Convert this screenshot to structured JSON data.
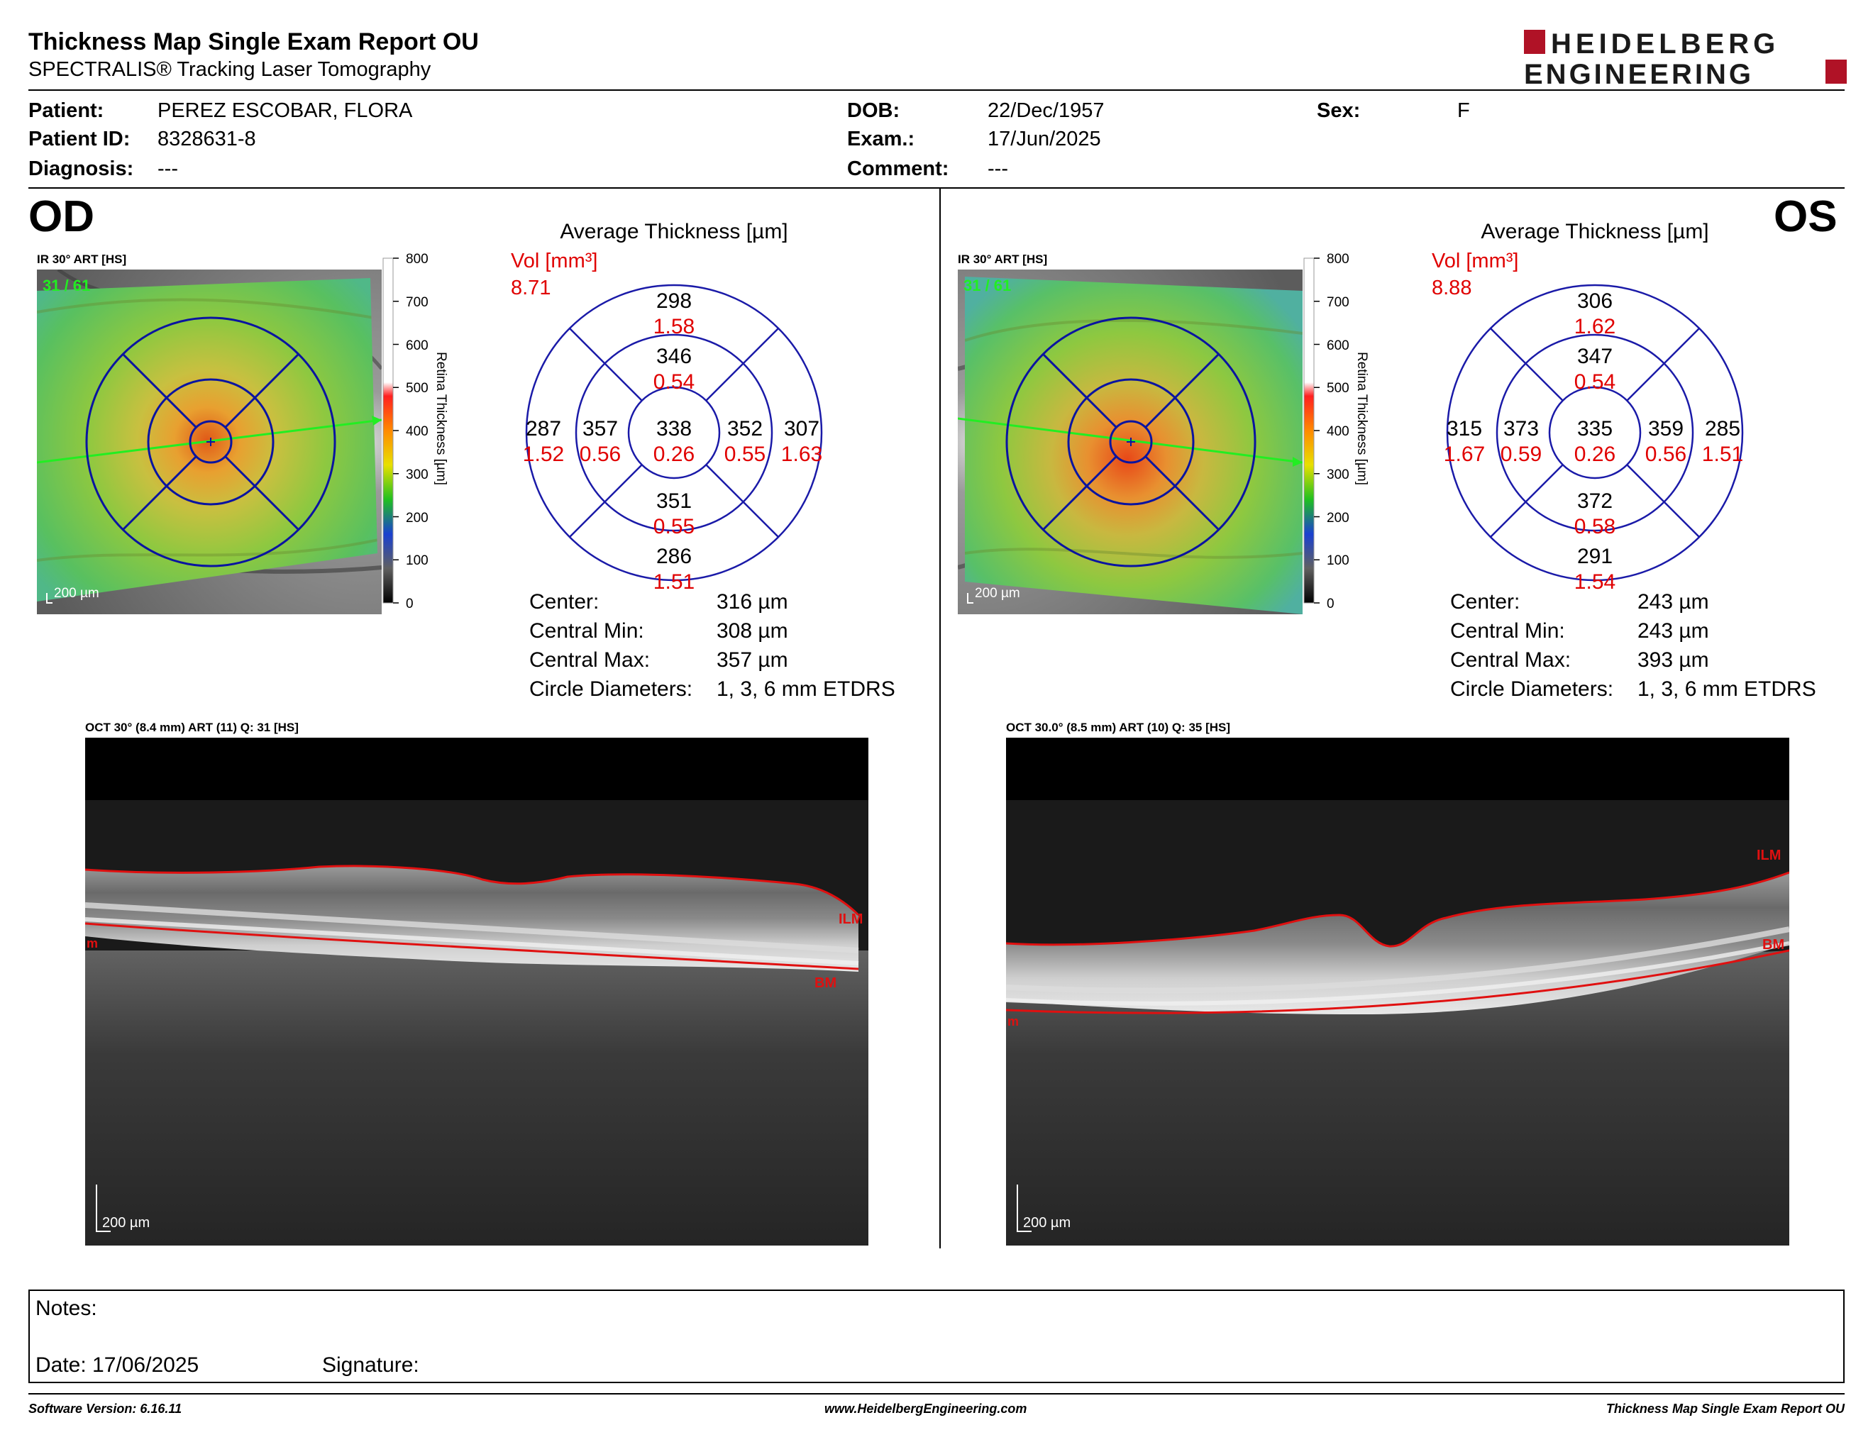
{
  "report": {
    "title": "Thickness Map Single Exam Report OU",
    "subtitle": "SPECTRALIS® Tracking Laser Tomography",
    "logo_line1": "HEIDELBERG",
    "logo_line2": "ENGINEERING",
    "brand_color": "#b01226"
  },
  "patient": {
    "patient_label": "Patient:",
    "patient_value": "PEREZ ESCOBAR, FLORA",
    "id_label": "Patient ID:",
    "id_value": "8328631-8",
    "diagnosis_label": "Diagnosis:",
    "diagnosis_value": "---",
    "dob_label": "DOB:",
    "dob_value": "22/Dec/1957",
    "exam_label": "Exam.:",
    "exam_value": "17/Jun/2025",
    "comment_label": "Comment:",
    "comment_value": "---",
    "sex_label": "Sex:",
    "sex_value": "F"
  },
  "scale": {
    "ticks": [
      "800",
      "700",
      "600",
      "500",
      "400",
      "300",
      "200",
      "100",
      "0"
    ],
    "title": "Retina  Thickness [µm]"
  },
  "od": {
    "eye_label": "OD",
    "ir_label": "IR 30° ART [HS]",
    "ir_counter": "31 / 61",
    "ir_scale": "200 µm",
    "avg_title": "Average Thickness [µm]",
    "vol_label": "Vol [mm³]",
    "vol_value": "8.71",
    "sectors": {
      "outer_sup": {
        "t": "298",
        "v": "1.58"
      },
      "inner_sup": {
        "t": "346",
        "v": "0.54"
      },
      "outer_left": {
        "t": "287",
        "v": "1.52"
      },
      "inner_left": {
        "t": "357",
        "v": "0.56"
      },
      "center": {
        "t": "338",
        "v": "0.26"
      },
      "inner_right": {
        "t": "352",
        "v": "0.55"
      },
      "outer_right": {
        "t": "307",
        "v": "1.63"
      },
      "inner_inf": {
        "t": "351",
        "v": "0.55"
      },
      "outer_inf": {
        "t": "286",
        "v": "1.51"
      }
    },
    "stats": {
      "center_label": "Center:",
      "center_value": "316 µm",
      "min_label": "Central Min:",
      "min_value": "308 µm",
      "max_label": "Central Max:",
      "max_value": "357 µm",
      "diam_label": "Circle Diameters:",
      "diam_value": "1, 3, 6 mm ETDRS"
    },
    "oct_label": "OCT 30° (8.4 mm) ART (11) Q: 31 [HS]",
    "oct_scale": "200 µm",
    "ilm": "ILM",
    "bm": "BM",
    "m": "m"
  },
  "os": {
    "eye_label": "OS",
    "ir_label": "IR 30° ART [HS]",
    "ir_counter": "31 / 61",
    "ir_scale": "200 µm",
    "avg_title": "Average Thickness [µm]",
    "vol_label": "Vol [mm³]",
    "vol_value": "8.88",
    "sectors": {
      "outer_sup": {
        "t": "306",
        "v": "1.62"
      },
      "inner_sup": {
        "t": "347",
        "v": "0.54"
      },
      "outer_left": {
        "t": "315",
        "v": "1.67"
      },
      "inner_left": {
        "t": "373",
        "v": "0.59"
      },
      "center": {
        "t": "335",
        "v": "0.26"
      },
      "inner_right": {
        "t": "359",
        "v": "0.56"
      },
      "outer_right": {
        "t": "285",
        "v": "1.51"
      },
      "inner_inf": {
        "t": "372",
        "v": "0.58"
      },
      "outer_inf": {
        "t": "291",
        "v": "1.54"
      }
    },
    "stats": {
      "center_label": "Center:",
      "center_value": "243 µm",
      "min_label": "Central Min:",
      "min_value": "243 µm",
      "max_label": "Central Max:",
      "max_value": "393 µm",
      "diam_label": "Circle Diameters:",
      "diam_value": "1, 3, 6 mm ETDRS"
    },
    "oct_label": "OCT 30.0° (8.5 mm) ART (10) Q: 35 [HS]",
    "oct_scale": "200 µm",
    "ilm": "ILM",
    "bm": "BM",
    "m": "m"
  },
  "notes": {
    "notes_label": "Notes:",
    "date_label": "Date: 17/06/2025",
    "signature_label": "Signature:"
  },
  "footer": {
    "software": "Software Version: 6.16.11",
    "website": "www.HeidelbergEngineering.com",
    "report_name": "Thickness Map Single Exam Report OU"
  }
}
